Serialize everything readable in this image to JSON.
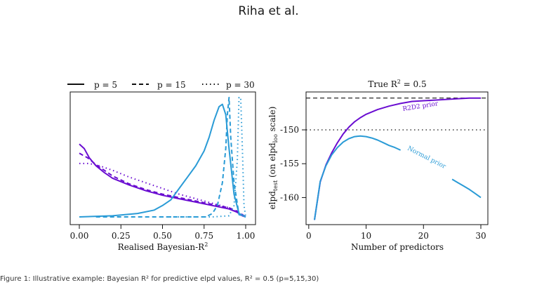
{
  "header": {
    "running_head": "Riha et al."
  },
  "colors": {
    "purple": "#6a0dd1",
    "blue": "#2a9bd6",
    "black": "#111111"
  },
  "chart_data": [
    {
      "type": "line",
      "title": "",
      "xlabel": "Realised Bayesian-R",
      "xlabel_sup": "2",
      "ylabel": "",
      "xlim": [
        0,
        1
      ],
      "ylim": [
        0,
        1
      ],
      "xticks": [
        "0.00",
        "0.25",
        "0.50",
        "0.75",
        "1.00"
      ],
      "legend": {
        "placement": "top",
        "entries": [
          {
            "label": "p = 5",
            "linestyle": "solid"
          },
          {
            "label": "p = 15",
            "linestyle": "dashed"
          },
          {
            "label": "p = 30",
            "linestyle": "dotted"
          }
        ]
      },
      "series": [
        {
          "color": "purple",
          "linestyle": "solid",
          "x": [
            0.0,
            0.03,
            0.06,
            0.1,
            0.15,
            0.2,
            0.3,
            0.4,
            0.5,
            0.6,
            0.7,
            0.8,
            0.9,
            0.95,
            0.98,
            1.0
          ],
          "y": [
            0.64,
            0.6,
            0.52,
            0.45,
            0.39,
            0.34,
            0.28,
            0.23,
            0.19,
            0.16,
            0.13,
            0.1,
            0.07,
            0.04,
            0.01,
            0.0
          ]
        },
        {
          "color": "purple",
          "linestyle": "dashed",
          "x": [
            0.0,
            0.05,
            0.1,
            0.15,
            0.2,
            0.3,
            0.4,
            0.5,
            0.6,
            0.7,
            0.8,
            0.9,
            0.95,
            1.0
          ],
          "y": [
            0.56,
            0.52,
            0.46,
            0.41,
            0.36,
            0.29,
            0.24,
            0.2,
            0.17,
            0.14,
            0.11,
            0.08,
            0.05,
            0.0
          ]
        },
        {
          "color": "purple",
          "linestyle": "dotted",
          "x": [
            0.0,
            0.05,
            0.1,
            0.2,
            0.3,
            0.4,
            0.5,
            0.6,
            0.7,
            0.8,
            0.9,
            0.95,
            1.0
          ],
          "y": [
            0.47,
            0.47,
            0.46,
            0.41,
            0.35,
            0.3,
            0.25,
            0.2,
            0.16,
            0.12,
            0.08,
            0.04,
            0.0
          ]
        },
        {
          "color": "blue",
          "linestyle": "solid",
          "x": [
            0.0,
            0.2,
            0.35,
            0.45,
            0.5,
            0.55,
            0.6,
            0.65,
            0.7,
            0.75,
            0.78,
            0.81,
            0.84,
            0.86,
            0.88,
            0.9,
            0.93,
            0.96,
            1.0
          ],
          "y": [
            0.0,
            0.01,
            0.03,
            0.06,
            0.1,
            0.15,
            0.25,
            0.35,
            0.45,
            0.58,
            0.7,
            0.85,
            0.97,
            0.99,
            0.9,
            0.6,
            0.2,
            0.03,
            0.0
          ]
        },
        {
          "color": "blue",
          "linestyle": "dashed",
          "x": [
            0.1,
            0.55,
            0.76,
            0.8,
            0.83,
            0.86,
            0.88,
            0.89,
            0.9,
            0.91,
            0.93,
            0.96,
            1.0
          ],
          "y": [
            0.0,
            0.0,
            0.0,
            0.03,
            0.1,
            0.3,
            0.6,
            0.9,
            1.05,
            0.7,
            0.3,
            0.02,
            0.0
          ]
        },
        {
          "color": "blue",
          "linestyle": "dotted",
          "x": [
            0.5,
            0.8,
            0.9,
            0.93,
            0.95,
            0.96,
            0.97,
            0.98,
            0.99,
            1.0
          ],
          "y": [
            0.0,
            0.0,
            0.01,
            0.1,
            0.5,
            1.05,
            1.05,
            0.6,
            0.1,
            0.0
          ]
        }
      ]
    },
    {
      "type": "line",
      "title": "True R",
      "title_sup": "2",
      "title_suffix": " = 0.5",
      "xlabel": "Number of predictors",
      "ylabel": "elpd",
      "ylabel_sub": "test",
      "ylabel_mid": " (on elpd",
      "ylabel_sub2": "loo",
      "ylabel_end": " scale)",
      "xlim": [
        0,
        31
      ],
      "ylim": [
        -164,
        -144.4
      ],
      "xticks": [
        0,
        10,
        20,
        30
      ],
      "yticks": [
        -150,
        -155,
        -160
      ],
      "hlines": [
        {
          "y": -145.3,
          "linestyle": "dashed",
          "color": "black"
        },
        {
          "y": -150.0,
          "linestyle": "dotted",
          "color": "black"
        }
      ],
      "series": [
        {
          "name": "R2D2 prior",
          "color": "purple",
          "x": [
            1,
            2,
            3,
            4,
            5,
            6,
            7,
            8,
            9,
            10,
            12,
            14,
            16,
            18,
            20,
            22,
            24,
            26,
            28,
            30
          ],
          "y": [
            -163.3,
            -157.7,
            -155.2,
            -153.4,
            -151.9,
            -150.6,
            -149.6,
            -148.8,
            -148.2,
            -147.7,
            -147.0,
            -146.5,
            -146.1,
            -145.8,
            -145.7,
            -145.6,
            -145.5,
            -145.4,
            -145.3,
            -145.3
          ]
        },
        {
          "name": "Normal prior",
          "color": "blue",
          "x": [
            1,
            2,
            3,
            4,
            5,
            6,
            7,
            8,
            9,
            10,
            11,
            12,
            13,
            14,
            15,
            16
          ],
          "y": [
            -163.3,
            -157.6,
            -155.3,
            -153.7,
            -152.6,
            -151.8,
            -151.3,
            -151.0,
            -150.9,
            -151.0,
            -151.2,
            -151.5,
            -151.9,
            -152.3,
            -152.6,
            -153.0
          ]
        },
        {
          "name": "",
          "color": "blue",
          "x": [
            25,
            26,
            27,
            28,
            29,
            30
          ],
          "y": [
            -157.3,
            -157.8,
            -158.3,
            -158.8,
            -159.4,
            -160.0
          ]
        }
      ],
      "annotations": [
        "R2D2 prior",
        "Normal prior"
      ]
    }
  ],
  "caption": "Figure 1:  Illustrative example: Bayesian R² for predictive elpd values, R² = 0.5 (p=5,15,30)"
}
